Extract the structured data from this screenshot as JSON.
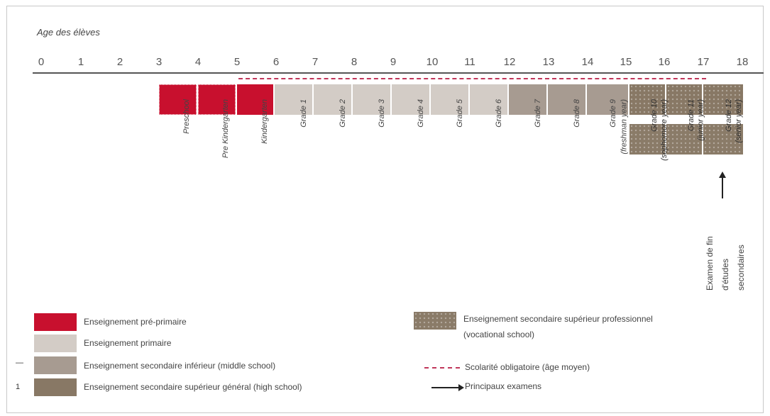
{
  "header": {
    "age_title": "Age des élèves"
  },
  "axis": {
    "ticks": [
      "0",
      "1",
      "2",
      "3",
      "4",
      "5",
      "6",
      "7",
      "8",
      "9",
      "10",
      "11",
      "12",
      "13",
      "14",
      "15",
      "16",
      "17",
      "18"
    ]
  },
  "grades": [
    {
      "label": "Preschool",
      "level": "pre-primary"
    },
    {
      "label": "Pre Kindergarten",
      "level": "pre-primary"
    },
    {
      "label": "Kindergarten",
      "level": "pre-primary"
    },
    {
      "label": "Grade 1",
      "level": "primary"
    },
    {
      "label": "Grade 2",
      "level": "primary"
    },
    {
      "label": "Grade 3",
      "level": "primary"
    },
    {
      "label": "Grade 4",
      "level": "primary"
    },
    {
      "label": "Grade 5",
      "level": "primary"
    },
    {
      "label": "Grade 6",
      "level": "primary"
    },
    {
      "label": "Grade 7",
      "level": "lower-secondary"
    },
    {
      "label": "Grade 8",
      "level": "lower-secondary"
    },
    {
      "label": "Grade 9",
      "label2": "(freshman year)",
      "level": "upper-secondary"
    },
    {
      "label": "Grade 10",
      "label2": "(sophomore year)",
      "level": "upper-secondary"
    },
    {
      "label": "Grade 11",
      "label2": "(junior year)",
      "level": "upper-secondary"
    },
    {
      "label": "Grade 12",
      "label2": "(senior year)",
      "level": "upper-secondary"
    }
  ],
  "exam_note": [
    "Examen de fin",
    "d'études",
    "secondaires"
  ],
  "legend": {
    "pre_primary": "Enseignement pré-primaire",
    "primary": "Enseignement primaire",
    "lower_secondary": "Enseignement secondaire inférieur (middle school)",
    "upper_secondary_general": "Enseignement secondaire supérieur général (high school)",
    "vocational_line1": "Enseignement secondaire supérieur professionnel",
    "vocational_line2": "(vocational school)",
    "compulsory": "Scolarité obligatoire (âge moyen)",
    "exams": "Principaux examens"
  },
  "side_marks": {
    "dash": "—",
    "one": "1"
  },
  "colors": {
    "pre_primary": "#c8102e",
    "primary": "#d3ccc6",
    "lower_secondary": "#a79b91",
    "upper_secondary": "#887865",
    "vocational": "#8a7b68",
    "compulsory_line": "#c0365a",
    "axis": "#555555"
  }
}
